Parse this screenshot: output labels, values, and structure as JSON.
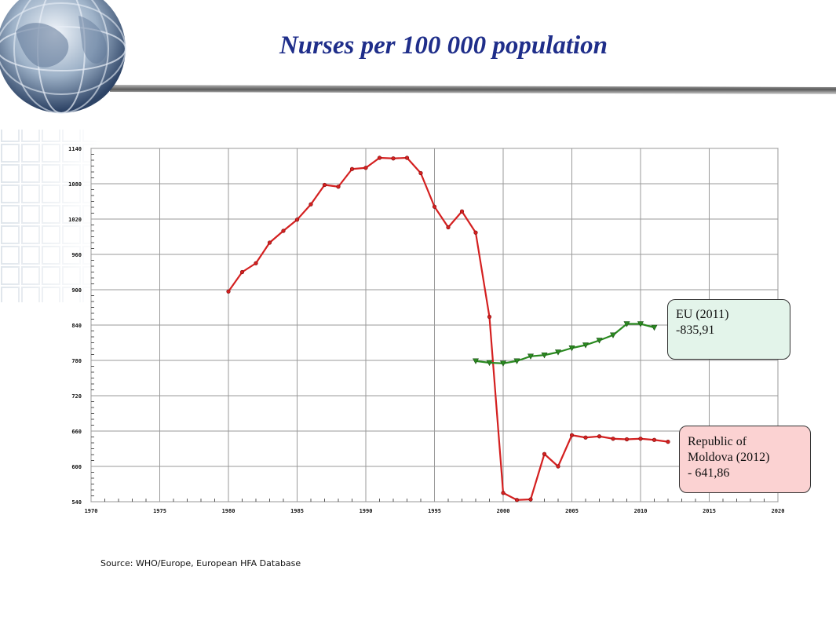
{
  "slide": {
    "title": "Nurses per 100 000 population",
    "source": "Source: WHO/Europe, European HFA Database"
  },
  "callouts": {
    "eu": {
      "line1": "EU (2011)",
      "line2": "-835,91"
    },
    "moldova": {
      "line1": "Republic of",
      "line2": "Moldova (2012)",
      "line3": "- 641,86"
    }
  },
  "colors": {
    "moldova": "#d42020",
    "eu": "#2a8a20",
    "title": "#1f2e8a",
    "grid": "#9a9a9a"
  },
  "chart_data": {
    "type": "line",
    "title": "",
    "xlabel": "",
    "ylabel": "",
    "xlim": [
      1970,
      2020
    ],
    "ylim": [
      540,
      1140
    ],
    "x_ticks": [
      1970,
      1975,
      1980,
      1985,
      1990,
      1995,
      2000,
      2005,
      2010,
      2015,
      2020
    ],
    "y_ticks": [
      540,
      600,
      660,
      720,
      780,
      840,
      900,
      960,
      1020,
      1080,
      1140
    ],
    "grid": true,
    "series": [
      {
        "name": "",
        "marker": "circle",
        "x": [
          1980,
          1981,
          1982,
          1983,
          1984,
          1985,
          1986,
          1987,
          1988,
          1989,
          1990,
          1991,
          1992,
          1993,
          1994,
          1995,
          1996,
          1997,
          1998,
          1999,
          2000,
          2001,
          2002,
          2003,
          2004,
          2005,
          2006,
          2007,
          2008,
          2009,
          2010,
          2011,
          2012
        ],
        "y": [
          897,
          930,
          945,
          980,
          1000,
          1019,
          1045,
          1078,
          1075,
          1105,
          1107,
          1124,
          1123,
          1124,
          1098,
          1041,
          1006,
          1033,
          997,
          854,
          555,
          543,
          544,
          621,
          600,
          653,
          649,
          651,
          647,
          646,
          647,
          645,
          641.86
        ]
      },
      {
        "name": "",
        "marker": "triangle-down",
        "x": [
          1998,
          1999,
          2000,
          2001,
          2002,
          2003,
          2004,
          2005,
          2006,
          2007,
          2008,
          2009,
          2010,
          2011
        ],
        "y": [
          779,
          776,
          775,
          779,
          787,
          789,
          794,
          801,
          806,
          814,
          823,
          842,
          842,
          835.91
        ]
      }
    ]
  }
}
